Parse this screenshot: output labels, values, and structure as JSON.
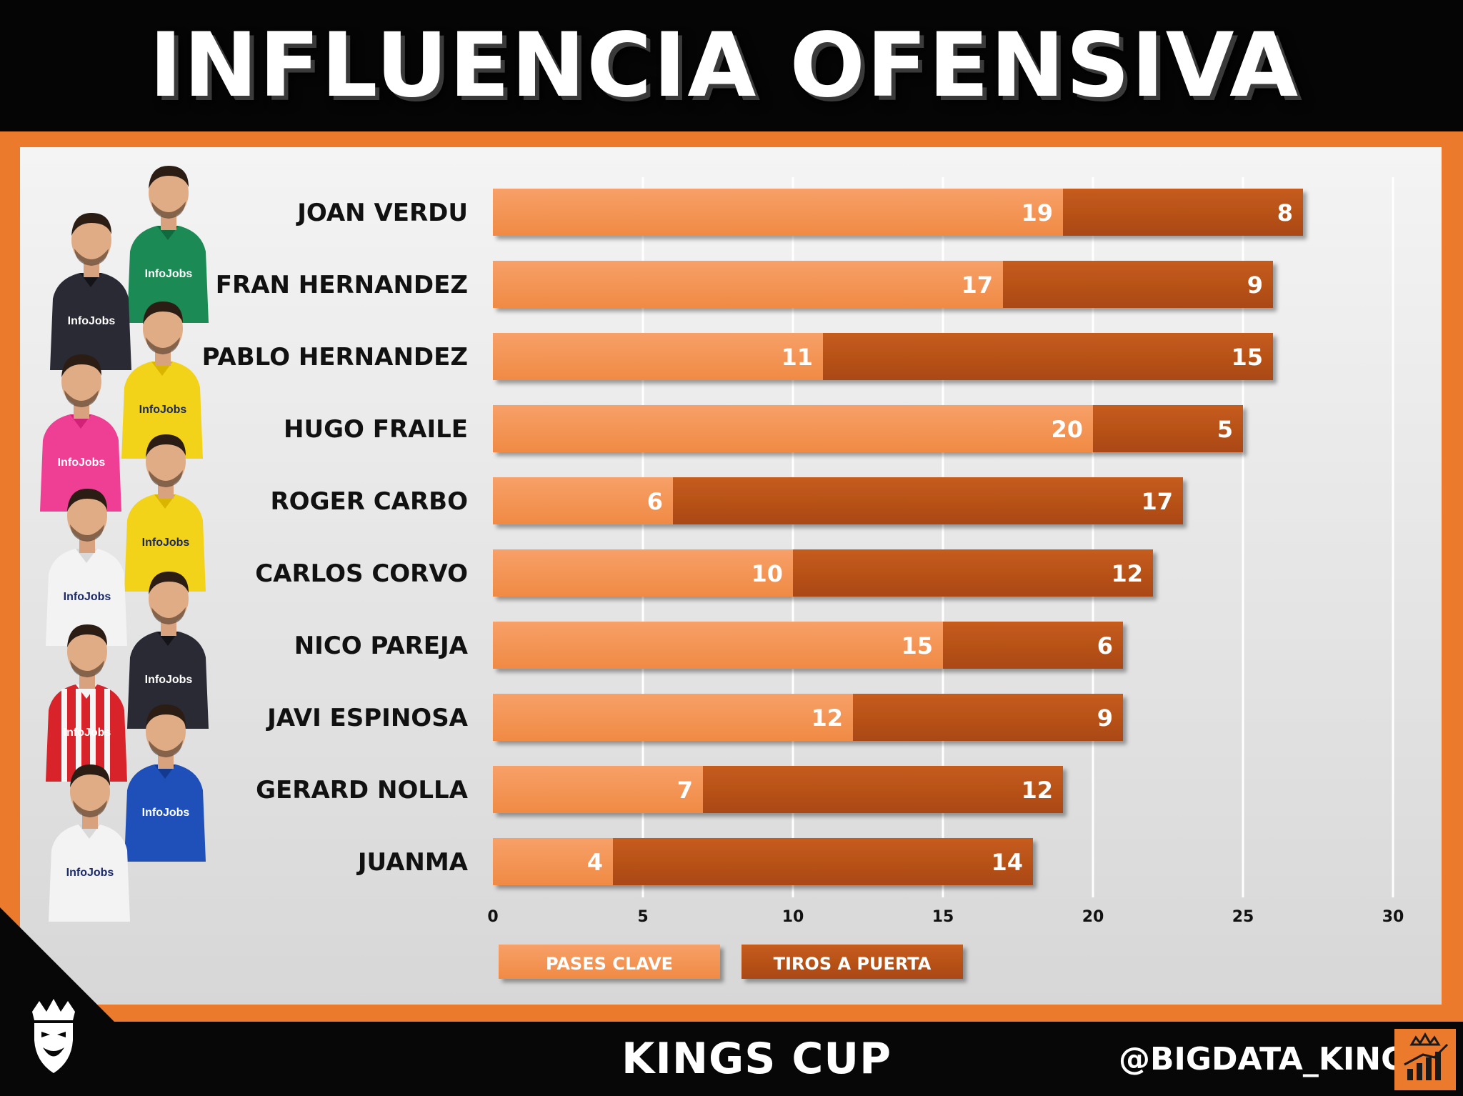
{
  "header": {
    "title": "INFLUENCIA OFENSIVA"
  },
  "footer": {
    "title": "KINGS CUP",
    "handle": "@BIGDATA_KINGS"
  },
  "colors": {
    "pases_clave": "#f4954e",
    "tiros_a_puerta": "#bd5318",
    "accent": "#ec7a2c",
    "background": "#0a0a0a"
  },
  "chart_data": {
    "type": "bar",
    "orientation": "horizontal",
    "stacked": true,
    "categories": [
      "JOAN VERDU",
      "FRAN HERNANDEZ",
      "PABLO HERNANDEZ",
      "HUGO FRAILE",
      "ROGER CARBO",
      "CARLOS CORVO",
      "NICO PAREJA",
      "JAVI ESPINOSA",
      "GERARD NOLLA",
      "JUANMA"
    ],
    "series": [
      {
        "name": "PASES CLAVE",
        "values": [
          19,
          17,
          11,
          20,
          6,
          10,
          15,
          12,
          7,
          4
        ]
      },
      {
        "name": "TIROS A PUERTA",
        "values": [
          8,
          9,
          15,
          5,
          17,
          12,
          6,
          9,
          12,
          14
        ]
      }
    ],
    "xlim": [
      0,
      30
    ],
    "xticks": [
      0,
      5,
      10,
      15,
      20,
      25,
      30
    ],
    "grid": true,
    "legend": "bottom",
    "title": "INFLUENCIA OFENSIVA"
  },
  "players": [
    {
      "name": "JOAN VERDU",
      "shirt": "green"
    },
    {
      "name": "FRAN HERNANDEZ",
      "shirt": "dark"
    },
    {
      "name": "PABLO HERNANDEZ",
      "shirt": "yellow"
    },
    {
      "name": "HUGO FRAILE",
      "shirt": "pink"
    },
    {
      "name": "ROGER CARBO",
      "shirt": "yellow"
    },
    {
      "name": "CARLOS CORVO",
      "shirt": "white"
    },
    {
      "name": "NICO PAREJA",
      "shirt": "dark"
    },
    {
      "name": "JAVI ESPINOSA",
      "shirt": "red-striped"
    },
    {
      "name": "GERARD NOLLA",
      "shirt": "blue"
    },
    {
      "name": "JUANMA",
      "shirt": "white"
    }
  ],
  "sponsor_text": "InfoJobs"
}
